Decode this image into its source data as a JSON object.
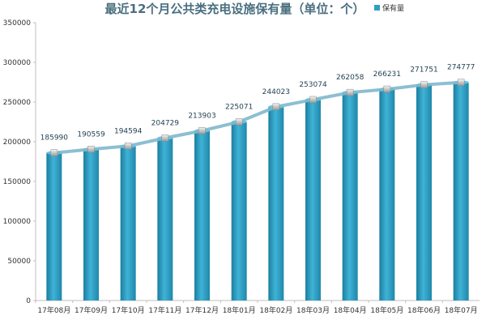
{
  "chart_data": {
    "type": "bar",
    "title": "最近12个月公共类充电设施保有量（单位：个）",
    "legend": {
      "label": "保有量",
      "position": "top-right"
    },
    "categories": [
      "17年08月",
      "17年09月",
      "17年10月",
      "17年11月",
      "17年12月",
      "18年01月",
      "18年02月",
      "18年03月",
      "18年04月",
      "18年05月",
      "18年06月",
      "18年07月"
    ],
    "series": [
      {
        "name": "保有量",
        "values": [
          185990,
          190559,
          194594,
          204729,
          213903,
          225071,
          244023,
          253074,
          262058,
          266231,
          271751,
          274777
        ]
      }
    ],
    "trend_line": true,
    "ylim": [
      0,
      350000
    ],
    "yticks": [
      0,
      50000,
      100000,
      150000,
      200000,
      250000,
      300000,
      350000
    ],
    "ytick_labels": [
      "0",
      "50000",
      "100000",
      "150000",
      "200000",
      "250000",
      "300000",
      "350000"
    ],
    "grid": false,
    "colors": {
      "bar": "#2f9fc3",
      "line": "#7fb8cc",
      "title": "#4a6f80"
    }
  }
}
